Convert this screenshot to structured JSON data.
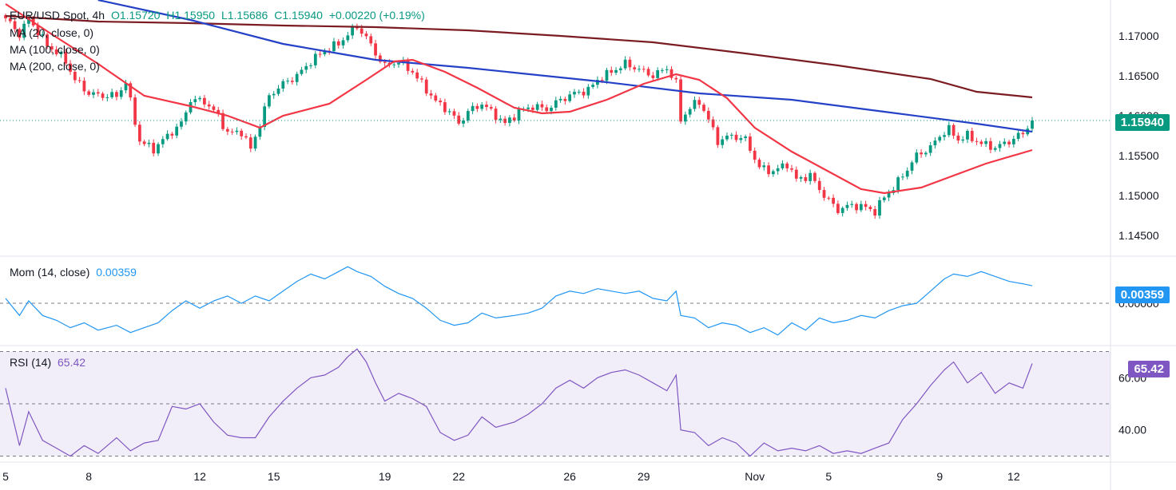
{
  "header": {
    "symbol": "EUR/USD Spot, 4h",
    "open": "O1.15720",
    "high": "H1.15950",
    "low": "L1.15686",
    "close": "C1.15940",
    "change": "+0.00220 (+0.19%)"
  },
  "ma_labels": [
    "MA (20, close, 0)",
    "MA (100, close, 0)",
    "MA (200, close, 0)"
  ],
  "momentum": {
    "label": "Mom (14, close)",
    "value": "0.00359",
    "badge": "0.00359"
  },
  "rsi": {
    "label": "RSI (14)",
    "value": "65.42",
    "badge": "65.42"
  },
  "price_badge": "1.15940",
  "colors": {
    "up": "#089981",
    "down": "#f23645",
    "ma20": "#f23645",
    "ma100": "#2441c7",
    "ma200": "#7b1c22",
    "mom": "#2196f3",
    "rsi": "#7e57c2",
    "rsi_band": "#7e57c2"
  },
  "chart_data": [
    {
      "type": "candlestick",
      "title": "EUR/USD Spot, 4h",
      "ylim": [
        1.1425,
        1.1745
      ],
      "y_ticks": [
        "1.17000",
        "1.16500",
        "1.16000",
        "1.15500",
        "1.15000",
        "1.14500"
      ],
      "y_tick_values": [
        1.17,
        1.165,
        1.16,
        1.155,
        1.15,
        1.145
      ],
      "x_labels": [
        "5",
        "8",
        "12",
        "15",
        "19",
        "22",
        "26",
        "29",
        "Nov",
        "5",
        "9",
        "12"
      ],
      "x_label_index": [
        0,
        18,
        42,
        58,
        82,
        98,
        122,
        138,
        162,
        178,
        202,
        218
      ],
      "last_price": 1.1594,
      "anchors": [
        [
          0,
          1.1722
        ],
        [
          3,
          1.1702
        ],
        [
          5,
          1.1722
        ],
        [
          7,
          1.1705
        ],
        [
          9,
          1.1688
        ],
        [
          11,
          1.168
        ],
        [
          13,
          1.1668
        ],
        [
          15,
          1.1645
        ],
        [
          18,
          1.1628
        ],
        [
          21,
          1.1625
        ],
        [
          24,
          1.1625
        ],
        [
          26,
          1.1642
        ],
        [
          29,
          1.1568
        ],
        [
          32,
          1.1558
        ],
        [
          35,
          1.1575
        ],
        [
          38,
          1.159
        ],
        [
          40,
          1.162
        ],
        [
          43,
          1.1618
        ],
        [
          46,
          1.16
        ],
        [
          48,
          1.1578
        ],
        [
          51,
          1.158
        ],
        [
          53,
          1.1558
        ],
        [
          55,
          1.159
        ],
        [
          57,
          1.1625
        ],
        [
          60,
          1.164
        ],
        [
          63,
          1.165
        ],
        [
          66,
          1.1668
        ],
        [
          69,
          1.1682
        ],
        [
          72,
          1.169
        ],
        [
          74,
          1.1702
        ],
        [
          76,
          1.1712
        ],
        [
          78,
          1.1698
        ],
        [
          80,
          1.1678
        ],
        [
          82,
          1.1662
        ],
        [
          85,
          1.1668
        ],
        [
          88,
          1.1655
        ],
        [
          90,
          1.164
        ],
        [
          93,
          1.1618
        ],
        [
          96,
          1.1605
        ],
        [
          98,
          1.159
        ],
        [
          100,
          1.1605
        ],
        [
          103,
          1.1615
        ],
        [
          106,
          1.16
        ],
        [
          108,
          1.159
        ],
        [
          111,
          1.1605
        ],
        [
          114,
          1.1612
        ],
        [
          117,
          1.1608
        ],
        [
          120,
          1.162
        ],
        [
          123,
          1.1628
        ],
        [
          126,
          1.1632
        ],
        [
          128,
          1.1645
        ],
        [
          131,
          1.1655
        ],
        [
          134,
          1.1665
        ],
        [
          137,
          1.1658
        ],
        [
          140,
          1.165
        ],
        [
          143,
          1.166
        ],
        [
          145,
          1.164
        ],
        [
          146,
          1.1595
        ],
        [
          148,
          1.161
        ],
        [
          150,
          1.1618
        ],
        [
          152,
          1.1595
        ],
        [
          154,
          1.1568
        ],
        [
          157,
          1.1575
        ],
        [
          160,
          1.157
        ],
        [
          163,
          1.1535
        ],
        [
          166,
          1.153
        ],
        [
          169,
          1.154
        ],
        [
          171,
          1.152
        ],
        [
          174,
          1.1525
        ],
        [
          177,
          1.15
        ],
        [
          180,
          1.1482
        ],
        [
          183,
          1.1488
        ],
        [
          186,
          1.1485
        ],
        [
          188,
          1.148
        ],
        [
          190,
          1.1498
        ],
        [
          192,
          1.151
        ],
        [
          194,
          1.1525
        ],
        [
          197,
          1.155
        ],
        [
          200,
          1.156
        ],
        [
          202,
          1.1575
        ],
        [
          204,
          1.1583
        ],
        [
          206,
          1.157
        ],
        [
          208,
          1.1575
        ],
        [
          211,
          1.1565
        ],
        [
          214,
          1.156
        ],
        [
          217,
          1.1568
        ],
        [
          220,
          1.1578
        ],
        [
          222,
          1.1594
        ]
      ],
      "ma20": [
        [
          0,
          1.174
        ],
        [
          10,
          1.1702
        ],
        [
          20,
          1.1665
        ],
        [
          30,
          1.1625
        ],
        [
          40,
          1.1612
        ],
        [
          48,
          1.16
        ],
        [
          55,
          1.1585
        ],
        [
          60,
          1.16
        ],
        [
          70,
          1.1615
        ],
        [
          78,
          1.1645
        ],
        [
          84,
          1.1668
        ],
        [
          88,
          1.167
        ],
        [
          95,
          1.1655
        ],
        [
          102,
          1.1635
        ],
        [
          110,
          1.161
        ],
        [
          116,
          1.1603
        ],
        [
          122,
          1.1605
        ],
        [
          130,
          1.162
        ],
        [
          138,
          1.164
        ],
        [
          145,
          1.1652
        ],
        [
          150,
          1.1645
        ],
        [
          156,
          1.1622
        ],
        [
          162,
          1.1585
        ],
        [
          170,
          1.1555
        ],
        [
          178,
          1.153
        ],
        [
          185,
          1.1508
        ],
        [
          190,
          1.1503
        ],
        [
          198,
          1.151
        ],
        [
          205,
          1.1525
        ],
        [
          212,
          1.154
        ],
        [
          222,
          1.1557
        ]
      ],
      "ma100": [
        [
          20,
          1.1745
        ],
        [
          40,
          1.172
        ],
        [
          60,
          1.169
        ],
        [
          80,
          1.167
        ],
        [
          100,
          1.166
        ],
        [
          130,
          1.1642
        ],
        [
          150,
          1.1628
        ],
        [
          170,
          1.162
        ],
        [
          190,
          1.1605
        ],
        [
          210,
          1.159
        ],
        [
          222,
          1.158
        ]
      ],
      "ma200": [
        [
          0,
          1.1725
        ],
        [
          20,
          1.1718
        ],
        [
          40,
          1.1716
        ],
        [
          60,
          1.1713
        ],
        [
          80,
          1.1711
        ],
        [
          100,
          1.1707
        ],
        [
          120,
          1.17
        ],
        [
          140,
          1.1692
        ],
        [
          160,
          1.1678
        ],
        [
          180,
          1.1663
        ],
        [
          200,
          1.1646
        ],
        [
          210,
          1.163
        ],
        [
          222,
          1.1623
        ]
      ]
    },
    {
      "type": "line",
      "title": "Mom (14, close)",
      "ylim": [
        -0.0085,
        0.0095
      ],
      "y_ticks": [
        "0.00000"
      ],
      "last_value": 0.00359,
      "points": [
        [
          0,
          0.001
        ],
        [
          3,
          -0.0025
        ],
        [
          5,
          0.0005
        ],
        [
          8,
          -0.0025
        ],
        [
          11,
          -0.0035
        ],
        [
          14,
          -0.005
        ],
        [
          17,
          -0.004
        ],
        [
          20,
          -0.0055
        ],
        [
          24,
          -0.0045
        ],
        [
          27,
          -0.006
        ],
        [
          30,
          -0.005
        ],
        [
          33,
          -0.004
        ],
        [
          36,
          -0.0015
        ],
        [
          39,
          0.0005
        ],
        [
          42,
          -0.001
        ],
        [
          45,
          0.0005
        ],
        [
          48,
          0.0015
        ],
        [
          51,
          0.0
        ],
        [
          54,
          0.0015
        ],
        [
          57,
          0.0005
        ],
        [
          60,
          0.0025
        ],
        [
          63,
          0.0045
        ],
        [
          66,
          0.006
        ],
        [
          69,
          0.005
        ],
        [
          72,
          0.0065
        ],
        [
          74,
          0.0075
        ],
        [
          76,
          0.0065
        ],
        [
          79,
          0.0055
        ],
        [
          82,
          0.0035
        ],
        [
          85,
          0.002
        ],
        [
          88,
          0.001
        ],
        [
          91,
          -0.001
        ],
        [
          94,
          -0.0035
        ],
        [
          97,
          -0.0045
        ],
        [
          100,
          -0.004
        ],
        [
          103,
          -0.002
        ],
        [
          106,
          -0.003
        ],
        [
          110,
          -0.0025
        ],
        [
          113,
          -0.002
        ],
        [
          116,
          -0.001
        ],
        [
          119,
          0.0015
        ],
        [
          122,
          0.0025
        ],
        [
          125,
          0.002
        ],
        [
          128,
          0.003
        ],
        [
          131,
          0.0025
        ],
        [
          134,
          0.002
        ],
        [
          137,
          0.0025
        ],
        [
          140,
          0.001
        ],
        [
          143,
          0.0005
        ],
        [
          145,
          0.0025
        ],
        [
          146,
          -0.0025
        ],
        [
          149,
          -0.003
        ],
        [
          152,
          -0.005
        ],
        [
          155,
          -0.004
        ],
        [
          158,
          -0.0045
        ],
        [
          161,
          -0.006
        ],
        [
          164,
          -0.005
        ],
        [
          167,
          -0.0065
        ],
        [
          170,
          -0.004
        ],
        [
          173,
          -0.0055
        ],
        [
          176,
          -0.003
        ],
        [
          179,
          -0.004
        ],
        [
          182,
          -0.0035
        ],
        [
          185,
          -0.0025
        ],
        [
          188,
          -0.003
        ],
        [
          191,
          -0.0015
        ],
        [
          194,
          -0.0005
        ],
        [
          197,
          0.0
        ],
        [
          200,
          0.0025
        ],
        [
          203,
          0.005
        ],
        [
          205,
          0.006
        ],
        [
          208,
          0.0055
        ],
        [
          211,
          0.0065
        ],
        [
          214,
          0.0055
        ],
        [
          217,
          0.0045
        ],
        [
          220,
          0.004
        ],
        [
          222,
          0.00359
        ]
      ]
    },
    {
      "type": "line",
      "title": "RSI (14)",
      "ylim": [
        28,
        72
      ],
      "y_ticks": [
        "60.00",
        "40.00"
      ],
      "y_tick_values": [
        60,
        40
      ],
      "band": [
        30,
        70
      ],
      "midline": 50,
      "last_value": 65.42,
      "points": [
        [
          0,
          56
        ],
        [
          3,
          34
        ],
        [
          5,
          47
        ],
        [
          8,
          36
        ],
        [
          11,
          33
        ],
        [
          14,
          30
        ],
        [
          17,
          34
        ],
        [
          20,
          31
        ],
        [
          24,
          37
        ],
        [
          27,
          32
        ],
        [
          30,
          35
        ],
        [
          33,
          36
        ],
        [
          36,
          49
        ],
        [
          39,
          48
        ],
        [
          42,
          50
        ],
        [
          45,
          43
        ],
        [
          48,
          38
        ],
        [
          51,
          37
        ],
        [
          54,
          37
        ],
        [
          57,
          45
        ],
        [
          60,
          51
        ],
        [
          63,
          56
        ],
        [
          66,
          60
        ],
        [
          69,
          61
        ],
        [
          72,
          64
        ],
        [
          74,
          68
        ],
        [
          76,
          71
        ],
        [
          78,
          66
        ],
        [
          80,
          58
        ],
        [
          82,
          51
        ],
        [
          85,
          54
        ],
        [
          88,
          52
        ],
        [
          91,
          49
        ],
        [
          94,
          39
        ],
        [
          97,
          36
        ],
        [
          100,
          38
        ],
        [
          103,
          45
        ],
        [
          106,
          41
        ],
        [
          110,
          43
        ],
        [
          113,
          46
        ],
        [
          116,
          50
        ],
        [
          119,
          56
        ],
        [
          122,
          59
        ],
        [
          125,
          56
        ],
        [
          128,
          60
        ],
        [
          131,
          62
        ],
        [
          134,
          63
        ],
        [
          137,
          61
        ],
        [
          140,
          58
        ],
        [
          143,
          55
        ],
        [
          145,
          61
        ],
        [
          146,
          40
        ],
        [
          149,
          39
        ],
        [
          152,
          34
        ],
        [
          155,
          37
        ],
        [
          158,
          35
        ],
        [
          161,
          30
        ],
        [
          164,
          35
        ],
        [
          167,
          32
        ],
        [
          170,
          33
        ],
        [
          173,
          32
        ],
        [
          176,
          34
        ],
        [
          179,
          31
        ],
        [
          182,
          32
        ],
        [
          185,
          31
        ],
        [
          188,
          33
        ],
        [
          191,
          35
        ],
        [
          194,
          44
        ],
        [
          197,
          50
        ],
        [
          200,
          57
        ],
        [
          203,
          63
        ],
        [
          205,
          66
        ],
        [
          208,
          58
        ],
        [
          211,
          62
        ],
        [
          214,
          54
        ],
        [
          217,
          58
        ],
        [
          220,
          56
        ],
        [
          222,
          65.42
        ]
      ]
    }
  ]
}
